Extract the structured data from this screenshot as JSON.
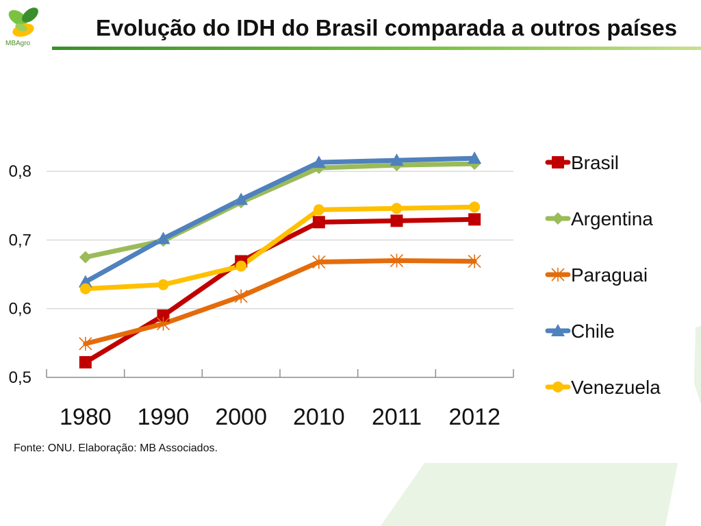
{
  "header": {
    "title": "Evolução do IDH do Brasil comparada a outros países",
    "logo_text": "MBAgro"
  },
  "source_text": "Fonte: ONU. Elaboração: MB Associados.",
  "colors": {
    "accent_green": "#5fa829",
    "gridline": "#c8c8c8",
    "axis": "#8c8c8c",
    "deco_green": "#e9f4e4"
  },
  "chart_data": {
    "type": "line",
    "title": "",
    "xlabel": "",
    "ylabel": "",
    "categories": [
      "1980",
      "1990",
      "2000",
      "2010",
      "2011",
      "2012"
    ],
    "ylim": [
      0.5,
      0.85
    ],
    "yticks": [
      0.5,
      0.6,
      0.7,
      0.8
    ],
    "ytick_labels": [
      "0,5",
      "0,6",
      "0,7",
      "0,8"
    ],
    "grid": true,
    "legend_position": "right",
    "series": [
      {
        "name": "Brasil",
        "color": "#c00000",
        "marker": "square",
        "values": [
          0.522,
          0.59,
          0.669,
          0.726,
          0.728,
          0.73
        ]
      },
      {
        "name": "Argentina",
        "color": "#9bbb59",
        "marker": "diamond",
        "values": [
          0.675,
          0.699,
          0.755,
          0.805,
          0.809,
          0.811
        ]
      },
      {
        "name": "Paraguai",
        "color": "#e46c0a",
        "marker": "asterisk",
        "values": [
          0.549,
          0.578,
          0.618,
          0.668,
          0.67,
          0.669
        ]
      },
      {
        "name": "Chile",
        "color": "#4f81bd",
        "marker": "triangle",
        "values": [
          0.639,
          0.702,
          0.759,
          0.813,
          0.816,
          0.819
        ]
      },
      {
        "name": "Venezuela",
        "color": "#ffc000",
        "marker": "circle",
        "values": [
          0.629,
          0.635,
          0.662,
          0.744,
          0.746,
          0.748
        ]
      }
    ]
  }
}
